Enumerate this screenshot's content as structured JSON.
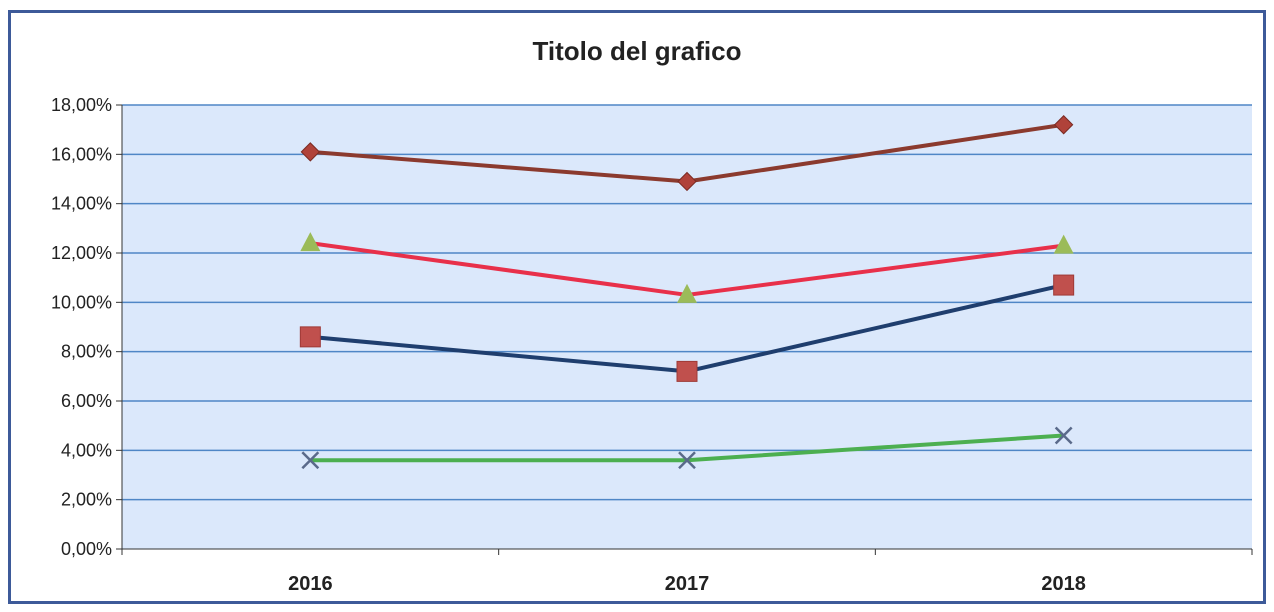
{
  "chart_data": {
    "type": "line",
    "title": "Titolo del grafico",
    "xlabel": "",
    "ylabel": "",
    "categories": [
      "2016",
      "2017",
      "2018"
    ],
    "ylim": [
      0,
      18
    ],
    "ytick_values": [
      0,
      2,
      4,
      6,
      8,
      10,
      12,
      14,
      16,
      18
    ],
    "ytick_labels": [
      "0,00%",
      "2,00%",
      "4,00%",
      "6,00%",
      "8,00%",
      "10,00%",
      "12,00%",
      "14,00%",
      "16,00%",
      "18,00%"
    ],
    "grid": true,
    "legend": "none",
    "plot_background": "#dbe8fb",
    "gridline_color": "#4f86c6",
    "series": [
      {
        "values": [
          16.1,
          14.9,
          17.2
        ],
        "line_color": "#8b3a2e",
        "marker": "diamond",
        "marker_color": "#b0423a"
      },
      {
        "values": [
          12.4,
          10.3,
          12.3
        ],
        "line_color": "#e8304a",
        "marker": "triangle",
        "marker_color": "#9bbb59"
      },
      {
        "values": [
          8.6,
          7.2,
          10.7
        ],
        "line_color": "#1f3e6e",
        "marker": "square",
        "marker_color": "#c0504d"
      },
      {
        "values": [
          3.6,
          3.6,
          4.6
        ],
        "line_color": "#4caf50",
        "marker": "x",
        "marker_color": "#5a6a8a"
      }
    ]
  }
}
